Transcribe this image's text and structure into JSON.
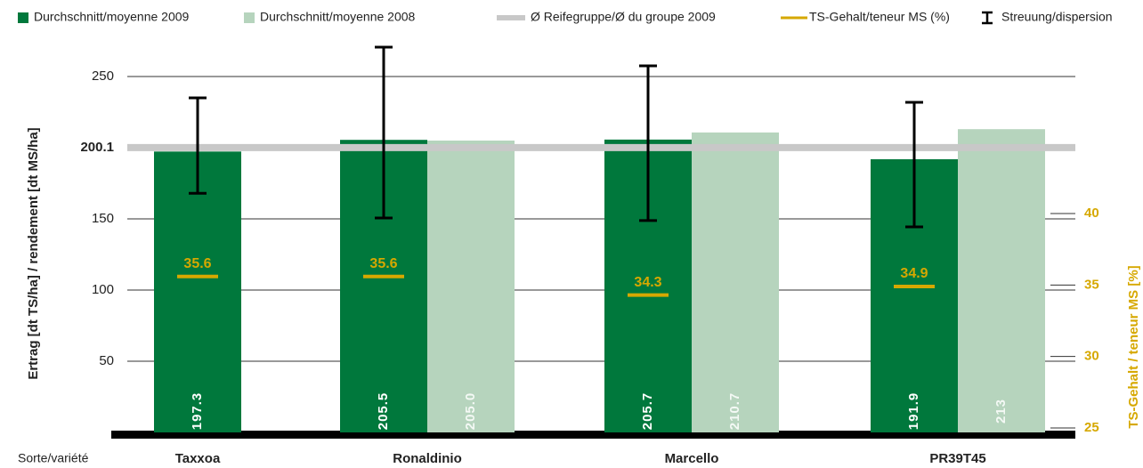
{
  "chart_data": {
    "type": "bar",
    "categories": [
      "Taxxoa",
      "Ronaldinio",
      "Marcello",
      "PR39T45"
    ],
    "x_label": "Sorte/variété",
    "y_label": "Ertrag [dt TS/ha] / rendement [dt MS/ha]",
    "y2_label": "TS-Gehalt / teneur MS [%]",
    "ylim": [
      0,
      250
    ],
    "yticks": [
      50,
      100,
      150,
      200.1,
      250
    ],
    "y2lim": [
      25,
      40
    ],
    "y2ticks": [
      25,
      30,
      35,
      40
    ],
    "grid": true,
    "series": [
      {
        "name": "Durchschnitt/moyenne 2009",
        "color": "#00783c",
        "values": [
          197.3,
          205.5,
          205.7,
          191.9
        ]
      },
      {
        "name": "Durchschnitt/moyenne 2008",
        "color": "#b6d4bd",
        "values": [
          null,
          205,
          210.7,
          213
        ],
        "value_labels": [
          null,
          "205.0",
          "210.7",
          "213"
        ]
      },
      {
        "name": "Ø Reifegruppe/Ø du groupe 2009",
        "color": "#c8c8c8",
        "type": "reference",
        "value": 200.1
      },
      {
        "name": "TS-Gehalt/teneur MS (%)",
        "color": "#d6a800",
        "type": "marker",
        "axis": "y2",
        "values": [
          35.6,
          35.6,
          34.3,
          34.9
        ]
      },
      {
        "name": "Streuung/dispersion",
        "color": "#000000",
        "type": "errorbar",
        "low": [
          168,
          150.6,
          148.8,
          144.4
        ],
        "high": [
          235,
          270.6,
          257.5,
          231.9
        ]
      }
    ]
  }
}
